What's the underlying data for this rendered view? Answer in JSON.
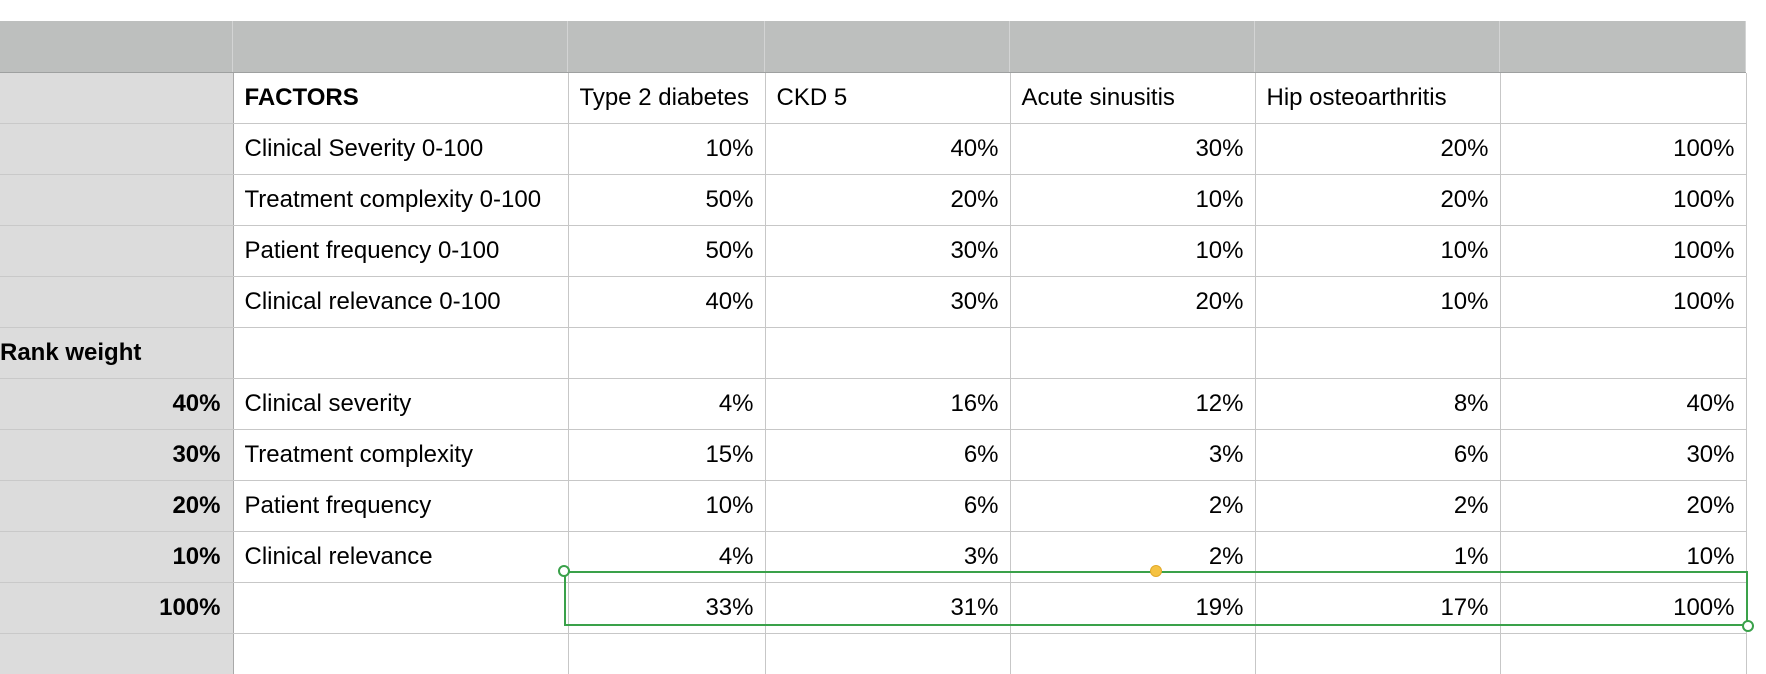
{
  "colors": {
    "header_strip": "#bdbfbe",
    "row_header": "#dcdcdc",
    "selection": "#3aa14a",
    "mid_handle": "#f5c242"
  },
  "rows": [
    {
      "rh": "",
      "label": "FACTORS",
      "label_bold": true,
      "vals": [
        "Type 2 diabetes",
        "CKD 5",
        "Acute sinusitis",
        "Hip osteoarthritis",
        ""
      ],
      "header_row": true
    },
    {
      "rh": "",
      "label": "Clinical Severity 0-100",
      "vals": [
        "10%",
        "40%",
        "30%",
        "20%",
        "100%"
      ]
    },
    {
      "rh": "",
      "label": "Treatment complexity 0-100",
      "vals": [
        "50%",
        "20%",
        "10%",
        "20%",
        "100%"
      ]
    },
    {
      "rh": "",
      "label": "Patient frequency 0-100",
      "vals": [
        "50%",
        "30%",
        "10%",
        "10%",
        "100%"
      ]
    },
    {
      "rh": "",
      "label": "Clinical relevance 0-100",
      "vals": [
        "40%",
        "30%",
        "20%",
        "10%",
        "100%"
      ]
    },
    {
      "rh": "Rank weight",
      "rh_left": true,
      "label": "",
      "vals": [
        "",
        "",
        "",
        "",
        ""
      ]
    },
    {
      "rh": "40%",
      "label": "Clinical severity",
      "vals": [
        "4%",
        "16%",
        "12%",
        "8%",
        "40%"
      ]
    },
    {
      "rh": "30%",
      "label": "Treatment complexity",
      "vals": [
        "15%",
        "6%",
        "3%",
        "6%",
        "30%"
      ]
    },
    {
      "rh": "20%",
      "label": "Patient frequency",
      "vals": [
        "10%",
        "6%",
        "2%",
        "2%",
        "20%"
      ]
    },
    {
      "rh": "10%",
      "label": "Clinical relevance",
      "vals": [
        "4%",
        "3%",
        "2%",
        "1%",
        "10%"
      ]
    },
    {
      "rh": "100%",
      "label": "",
      "vals": [
        "33%",
        "31%",
        "19%",
        "17%",
        "100%"
      ]
    },
    {
      "rh": "",
      "label": "",
      "vals": [
        "",
        "",
        "",
        "",
        ""
      ]
    }
  ]
}
